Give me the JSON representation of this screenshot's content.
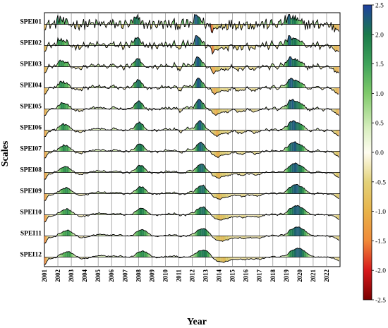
{
  "chart_data": {
    "type": "area",
    "title": "",
    "xlabel": "Year",
    "ylabel": "Scales",
    "scales": [
      "SPEI01",
      "SPEI02",
      "SPEI03",
      "SPEI04",
      "SPEI05",
      "SPEI06",
      "SPEI07",
      "SPEI08",
      "SPEI09",
      "SPEI10",
      "SPEI11",
      "SPEI12"
    ],
    "years": [
      "2001",
      "2002",
      "2003",
      "2004",
      "2005",
      "2006",
      "2007",
      "2008",
      "2009",
      "2010",
      "2011",
      "2012",
      "2013",
      "2014",
      "2015",
      "2016",
      "2017",
      "2018",
      "2019",
      "2020",
      "2021",
      "2022"
    ],
    "x_range": [
      2001,
      2023
    ],
    "colorbar": {
      "vmin": -2.5,
      "vmax": 2.5,
      "ticks": [
        "2.5",
        "2.0",
        "1.5",
        "1.0",
        "0.5",
        "0.0",
        "-0.5",
        "-1.0",
        "-1.5",
        "-2.0",
        "-2.5"
      ],
      "colors": [
        "#7a0000",
        "#d7191c",
        "#f4a24a",
        "#d6c25c",
        "#fffdf0",
        "#c7e7a1",
        "#4caf50",
        "#1a7a4a",
        "#2040a0"
      ]
    },
    "grid": "vertical lines at each year",
    "note_values": "Monthly SPEI values per scale; approximate peaks: 2012 wet (~1.5-2.0), 2019 wet (~1.2-1.8), 2013-2014 dry (~-1.0)"
  }
}
